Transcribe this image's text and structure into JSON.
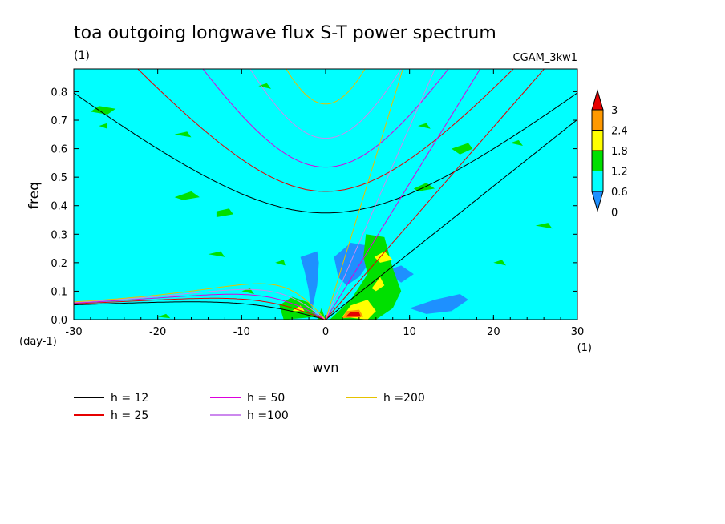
{
  "chart_data": {
    "type": "heatmap",
    "title": "toa outgoing longwave flux S-T power spectrum",
    "subtitle": "(1)",
    "dataset_label": "CGAM_3kw1",
    "xlabel": "wvn",
    "ylabel": "freq",
    "x_units": "(1)",
    "y_units": "(day-1)",
    "xlim": [
      -30,
      30
    ],
    "ylim": [
      0,
      0.88
    ],
    "x_ticks": [
      -30,
      -20,
      -10,
      0,
      10,
      20,
      30
    ],
    "y_ticks": [
      0.0,
      0.1,
      0.2,
      0.3,
      0.4,
      0.5,
      0.6,
      0.7,
      0.8
    ],
    "y_tick_labels": [
      "0.0",
      "0.1",
      "0.2",
      "0.3",
      "0.4",
      "0.5",
      "0.6",
      "0.7",
      "0.8"
    ],
    "background_level": "0.6-1.2",
    "colorbar": {
      "labels": [
        "3",
        "2.4",
        "1.8",
        "1.2",
        "0.6",
        "0"
      ],
      "colors": [
        "#e60000",
        "#ff9900",
        "#ffff00",
        "#00e000",
        "#00ffff",
        "#1e90ff"
      ],
      "extend": "both"
    },
    "regions": [
      {
        "level": "0-0.6",
        "color": "#1e90ff",
        "polygon": [
          [
            -2,
            0.0
          ],
          [
            -1.5,
            0.05
          ],
          [
            -1,
            0.12
          ],
          [
            -0.8,
            0.2
          ],
          [
            -1,
            0.24
          ],
          [
            -3,
            0.22
          ],
          [
            -2.5,
            0.17
          ],
          [
            -2,
            0.1
          ],
          [
            -1.8,
            0.04
          ]
        ]
      },
      {
        "level": "0-0.6",
        "color": "#1e90ff",
        "polygon": [
          [
            1,
            0.22
          ],
          [
            3,
            0.27
          ],
          [
            5,
            0.26
          ],
          [
            5.2,
            0.2
          ],
          [
            4,
            0.15
          ],
          [
            2.5,
            0.12
          ],
          [
            1.5,
            0.15
          ]
        ]
      },
      {
        "level": "0-0.6",
        "color": "#1e90ff",
        "polygon": [
          [
            10,
            0.04
          ],
          [
            13,
            0.07
          ],
          [
            16,
            0.09
          ],
          [
            17,
            0.07
          ],
          [
            15,
            0.03
          ],
          [
            12,
            0.02
          ]
        ]
      },
      {
        "level": "0-0.6",
        "color": "#1e90ff",
        "polygon": [
          [
            7,
            0.17
          ],
          [
            9,
            0.19
          ],
          [
            10.5,
            0.16
          ],
          [
            9,
            0.13
          ]
        ]
      },
      {
        "level": "1.2-1.8",
        "color": "#00e000",
        "polygon": [
          [
            -1,
            0.0
          ],
          [
            -0.5,
            0.04
          ],
          [
            0,
            0.0
          ]
        ]
      },
      {
        "level": "1.2-1.8",
        "color": "#00e000",
        "polygon": [
          [
            -5,
            0.0
          ],
          [
            -5.5,
            0.05
          ],
          [
            -4,
            0.08
          ],
          [
            -2,
            0.06
          ],
          [
            -1,
            0.01
          ]
        ]
      },
      {
        "level": "1.2-1.8",
        "color": "#00e000",
        "polygon": [
          [
            0.5,
            0.0
          ],
          [
            3,
            0.07
          ],
          [
            5,
            0.16
          ],
          [
            4.5,
            0.22
          ],
          [
            4.8,
            0.3
          ],
          [
            7,
            0.29
          ],
          [
            8,
            0.18
          ],
          [
            9,
            0.1
          ],
          [
            8,
            0.04
          ],
          [
            6,
            0.0
          ]
        ]
      },
      {
        "level": "1.8-2.4",
        "color": "#ffff00",
        "polygon": [
          [
            2,
            0.01
          ],
          [
            3,
            0.05
          ],
          [
            5,
            0.07
          ],
          [
            6,
            0.03
          ],
          [
            5,
            0.0
          ]
        ]
      },
      {
        "level": "1.8-2.4",
        "color": "#ffff00",
        "polygon": [
          [
            5.5,
            0.11
          ],
          [
            6.5,
            0.15
          ],
          [
            7,
            0.12
          ],
          [
            6,
            0.1
          ]
        ]
      },
      {
        "level": "1.8-2.4",
        "color": "#ffff00",
        "polygon": [
          [
            5.8,
            0.22
          ],
          [
            7,
            0.24
          ],
          [
            8,
            0.21
          ],
          [
            6.5,
            0.2
          ]
        ]
      },
      {
        "level": "1.8-2.4",
        "color": "#ffff00",
        "polygon": [
          [
            -4,
            0.03
          ],
          [
            -3,
            0.05
          ],
          [
            -2.5,
            0.03
          ]
        ]
      },
      {
        "level": "2.4-3",
        "color": "#ff9900",
        "polygon": [
          [
            2,
            0.005
          ],
          [
            2.5,
            0.03
          ],
          [
            4,
            0.035
          ],
          [
            4.5,
            0.01
          ]
        ]
      },
      {
        "level": ">3",
        "color": "#e60000",
        "polygon": [
          [
            2.4,
            0.01
          ],
          [
            3,
            0.028
          ],
          [
            4,
            0.025
          ],
          [
            4.2,
            0.01
          ]
        ]
      },
      {
        "level": "1.2-1.8",
        "color": "#00e000",
        "polygon": [
          [
            -28,
            0.73
          ],
          [
            -27,
            0.75
          ],
          [
            -25,
            0.74
          ],
          [
            -26,
            0.72
          ]
        ]
      },
      {
        "level": "1.2-1.8",
        "color": "#00e000",
        "polygon": [
          [
            -18,
            0.43
          ],
          [
            -16,
            0.45
          ],
          [
            -15,
            0.43
          ],
          [
            -17,
            0.42
          ]
        ]
      },
      {
        "level": "1.2-1.8",
        "color": "#00e000",
        "polygon": [
          [
            -13,
            0.38
          ],
          [
            -11.5,
            0.39
          ],
          [
            -11,
            0.37
          ],
          [
            -13,
            0.36
          ]
        ]
      },
      {
        "level": "1.2-1.8",
        "color": "#00e000",
        "polygon": [
          [
            -18,
            0.65
          ],
          [
            -16.5,
            0.66
          ],
          [
            -16,
            0.64
          ]
        ]
      },
      {
        "level": "1.2-1.8",
        "color": "#00e000",
        "polygon": [
          [
            -27,
            0.68
          ],
          [
            -26,
            0.69
          ],
          [
            -26,
            0.67
          ]
        ]
      },
      {
        "level": "1.2-1.8",
        "color": "#00e000",
        "polygon": [
          [
            -14,
            0.23
          ],
          [
            -12.5,
            0.24
          ],
          [
            -12,
            0.22
          ]
        ]
      },
      {
        "level": "1.2-1.8",
        "color": "#00e000",
        "polygon": [
          [
            15,
            0.6
          ],
          [
            17,
            0.62
          ],
          [
            17.5,
            0.6
          ],
          [
            16,
            0.58
          ]
        ]
      },
      {
        "level": "1.2-1.8",
        "color": "#00e000",
        "polygon": [
          [
            10.5,
            0.46
          ],
          [
            12,
            0.48
          ],
          [
            13,
            0.46
          ],
          [
            11,
            0.45
          ]
        ]
      },
      {
        "level": "1.2-1.8",
        "color": "#00e000",
        "polygon": [
          [
            25,
            0.33
          ],
          [
            26.5,
            0.34
          ],
          [
            27,
            0.32
          ]
        ]
      },
      {
        "level": "1.2-1.8",
        "color": "#00e000",
        "polygon": [
          [
            20,
            0.2
          ],
          [
            21,
            0.21
          ],
          [
            21.5,
            0.19
          ]
        ]
      },
      {
        "level": "1.2-1.8",
        "color": "#00e000",
        "polygon": [
          [
            -8,
            0.82
          ],
          [
            -7,
            0.83
          ],
          [
            -6.5,
            0.81
          ]
        ]
      },
      {
        "level": "1.2-1.8",
        "color": "#00e000",
        "polygon": [
          [
            -10,
            0.1
          ],
          [
            -9,
            0.11
          ],
          [
            -8.5,
            0.09
          ]
        ]
      },
      {
        "level": "1.2-1.8",
        "color": "#00e000",
        "polygon": [
          [
            -20,
            0.01
          ],
          [
            -19,
            0.02
          ],
          [
            -18.5,
            0.005
          ]
        ]
      },
      {
        "level": "1.2-1.8",
        "color": "#00e000",
        "polygon": [
          [
            -6,
            0.2
          ],
          [
            -5,
            0.21
          ],
          [
            -4.8,
            0.19
          ]
        ]
      },
      {
        "level": "1.2-1.8",
        "color": "#00e000",
        "polygon": [
          [
            11,
            0.68
          ],
          [
            12,
            0.69
          ],
          [
            12.5,
            0.67
          ]
        ]
      },
      {
        "level": "1.2-1.8",
        "color": "#00e000",
        "polygon": [
          [
            22,
            0.62
          ],
          [
            23,
            0.63
          ],
          [
            23.5,
            0.61
          ]
        ]
      }
    ],
    "dispersion_curves": [
      {
        "name": "h = 12",
        "color": "#000000",
        "h": 12
      },
      {
        "name": "h = 25",
        "color": "#e60000",
        "h": 25
      },
      {
        "name": "h = 50",
        "color": "#dd00dd",
        "h": 50
      },
      {
        "name": "h =100",
        "color": "#cc88ee",
        "h": 100
      },
      {
        "name": "h =200",
        "color": "#e6c200",
        "h": 200
      }
    ]
  }
}
